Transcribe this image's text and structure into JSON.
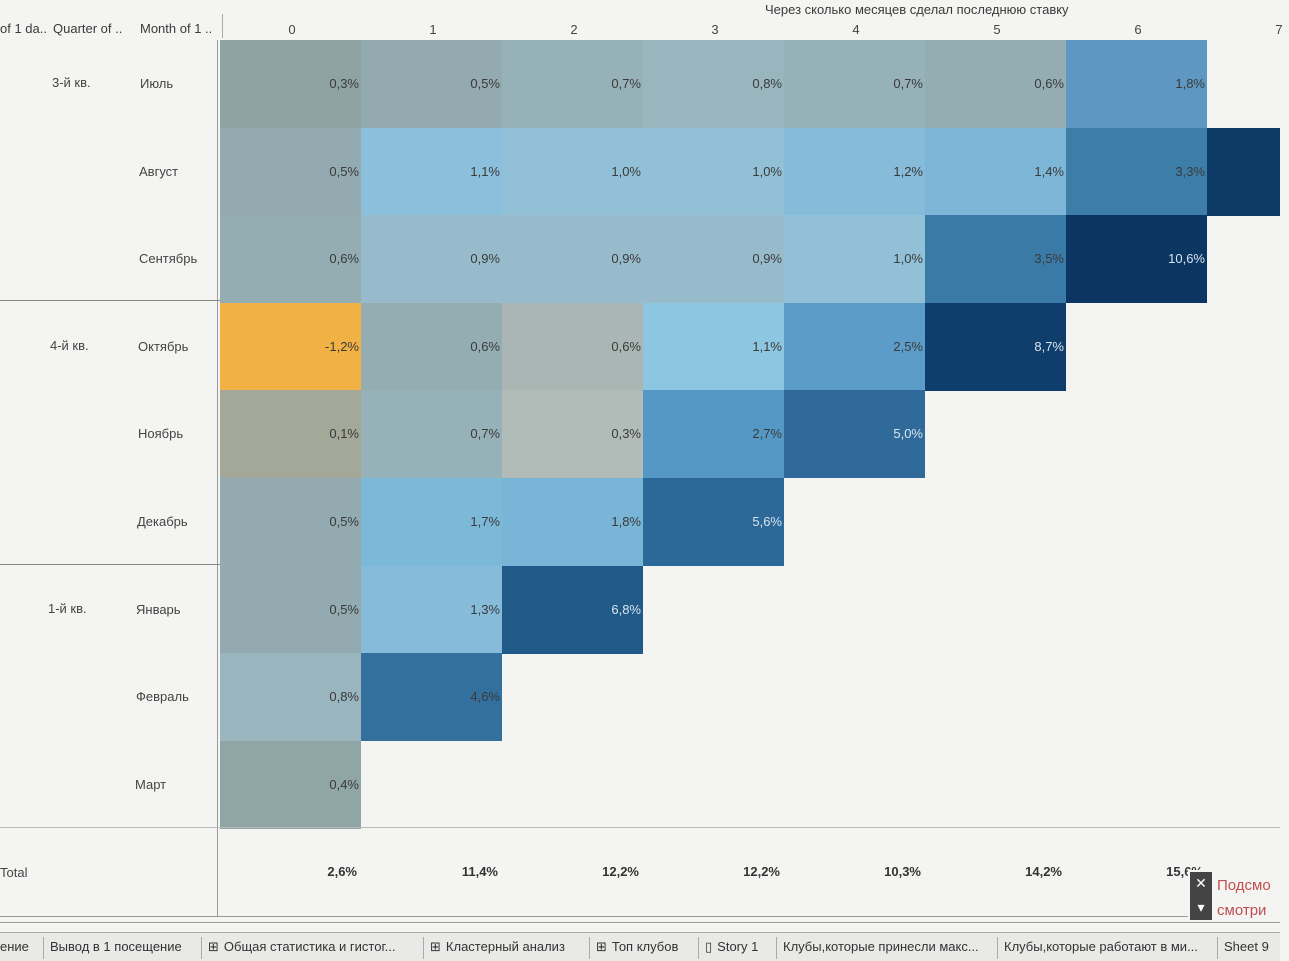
{
  "headers": {
    "col_date": "of 1 da..",
    "col_quarter": "Quarter of ..",
    "col_month": "Month of 1 ..",
    "axis_title": "Через сколько месяцев сделал последнюю ставку"
  },
  "columns": [
    "0",
    "1",
    "2",
    "3",
    "4",
    "5",
    "6",
    "7"
  ],
  "quarters": [
    "3-й кв.",
    "4-й кв.",
    "1-й кв."
  ],
  "rows": [
    {
      "month": "Июль",
      "cells": [
        {
          "v": "0,3%",
          "c": "#8fa3a3"
        },
        {
          "v": "0,5%",
          "c": "#93aab0"
        },
        {
          "v": "0,7%",
          "c": "#97b1b8"
        },
        {
          "v": "0,8%",
          "c": "#99b5bd"
        },
        {
          "v": "0,7%",
          "c": "#97b1b8"
        },
        {
          "v": "0,6%",
          "c": "#94adb3"
        },
        {
          "v": "1,8%",
          "c": "#5e98c2"
        }
      ]
    },
    {
      "month": "Август",
      "cells": [
        {
          "v": "0,5%",
          "c": "#93aab0"
        },
        {
          "v": "1,1%",
          "c": "#8cbfdb"
        },
        {
          "v": "1,0%",
          "c": "#92c0d6"
        },
        {
          "v": "1,0%",
          "c": "#92c0d6"
        },
        {
          "v": "1,2%",
          "c": "#86bbd9"
        },
        {
          "v": "1,4%",
          "c": "#7db6d6"
        },
        {
          "v": "3,3%",
          "c": "#3d7ea8"
        },
        {
          "v": "",
          "c": "#0e3a66"
        }
      ]
    },
    {
      "month": "Сентябрь",
      "cells": [
        {
          "v": "0,6%",
          "c": "#94adb3"
        },
        {
          "v": "0,9%",
          "c": "#98bbcc"
        },
        {
          "v": "0,9%",
          "c": "#98bbcc"
        },
        {
          "v": "0,9%",
          "c": "#98bbcc"
        },
        {
          "v": "1,0%",
          "c": "#92c0d6"
        },
        {
          "v": "3,5%",
          "c": "#3a7aa6"
        },
        {
          "v": "10,6%",
          "c": "#0b3664"
        }
      ]
    },
    {
      "month": "Октябрь",
      "cells": [
        {
          "v": "-1,2%",
          "c": "#f2b144"
        },
        {
          "v": "0,6%",
          "c": "#94adb3"
        },
        {
          "v": "0,6%",
          "c": "#a9b6b4"
        },
        {
          "v": "1,1%",
          "c": "#8cc6e0"
        },
        {
          "v": "2,5%",
          "c": "#5c9cc8"
        },
        {
          "v": "8,7%",
          "c": "#103e6c"
        }
      ]
    },
    {
      "month": "Ноябрь",
      "cells": [
        {
          "v": "0,1%",
          "c": "#a3a898"
        },
        {
          "v": "0,7%",
          "c": "#97b1b8"
        },
        {
          "v": "0,3%",
          "c": "#b1bcb8"
        },
        {
          "v": "2,7%",
          "c": "#5598c6"
        },
        {
          "v": "5,0%",
          "c": "#2f6a9a"
        }
      ]
    },
    {
      "month": "Декабрь",
      "cells": [
        {
          "v": "0,5%",
          "c": "#93aab0"
        },
        {
          "v": "1,7%",
          "c": "#7cb8d8"
        },
        {
          "v": "1,8%",
          "c": "#78b5d6"
        },
        {
          "v": "5,6%",
          "c": "#2c6898"
        }
      ]
    },
    {
      "month": "Январь",
      "cells": [
        {
          "v": "0,5%",
          "c": "#93aab0"
        },
        {
          "v": "1,3%",
          "c": "#86bbd9"
        },
        {
          "v": "6,8%",
          "c": "#1f5a88"
        }
      ]
    },
    {
      "month": "Февраль",
      "cells": [
        {
          "v": "0,8%",
          "c": "#99b5bd"
        },
        {
          "v": "4,6%",
          "c": "#34709e"
        }
      ]
    },
    {
      "month": "Март",
      "cells": [
        {
          "v": "0,4%",
          "c": "#8fa5a6"
        }
      ]
    }
  ],
  "totals": {
    "label": "Total",
    "values": [
      "2,6%",
      "11,4%",
      "12,2%",
      "12,2%",
      "10,3%",
      "14,2%",
      "15,6%"
    ]
  },
  "tabs": [
    {
      "label": "ение",
      "icon": ""
    },
    {
      "label": "Вывод в 1 посещение",
      "icon": ""
    },
    {
      "label": "Общая статистика и гистог...",
      "icon": "⊞"
    },
    {
      "label": "Кластерный анализ",
      "icon": "⊞"
    },
    {
      "label": "Топ клубов",
      "icon": "⊞"
    },
    {
      "label": "Story 1",
      "icon": "▯"
    },
    {
      "label": "Клубы,которые принесли макс...",
      "icon": ""
    },
    {
      "label": "Клубы,которые работают в ми...",
      "icon": ""
    },
    {
      "label": "Sheet 9",
      "icon": ""
    }
  ],
  "popup": {
    "line1": "Подсмо",
    "line2": "смотри",
    "close": "✕",
    "arrow": "▾"
  }
}
